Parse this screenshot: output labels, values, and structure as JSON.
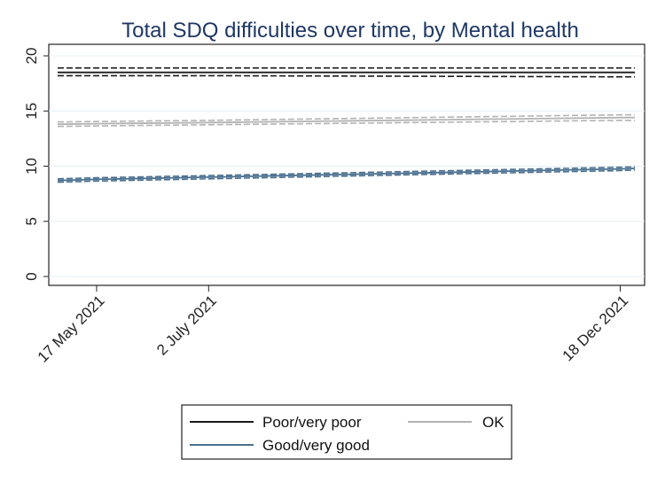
{
  "chart_data": {
    "type": "line",
    "title": "Total SDQ difficulties over time, by Mental health",
    "xlabel": "",
    "ylabel": "",
    "ylim": [
      0,
      20
    ],
    "yticks": [
      0,
      5,
      10,
      15,
      20
    ],
    "x_ticks": [
      "17 May 2021",
      "2 July 2021",
      "18 Dec 2021"
    ],
    "x": [
      "1 May 2021",
      "17 May 2021",
      "2 July 2021",
      "18 Dec 2021",
      "24 Dec 2021"
    ],
    "x_days": [
      0,
      16,
      62,
      231,
      237
    ],
    "grid": true,
    "legend_position": "bottom",
    "series": [
      {
        "name": "Poor/very poor",
        "color": "#1a1a1a",
        "values": [
          18.5,
          18.5,
          18.5,
          18.5,
          18.5
        ],
        "ci_lower": [
          18.2,
          18.2,
          18.2,
          18.1,
          18.1
        ],
        "ci_upper": [
          18.9,
          18.9,
          18.9,
          18.9,
          18.9
        ]
      },
      {
        "name": "OK",
        "color": "#b3b3b3",
        "values": [
          13.8,
          13.85,
          13.95,
          14.4,
          14.4
        ],
        "ci_lower": [
          13.6,
          13.65,
          13.75,
          14.15,
          14.15
        ],
        "ci_upper": [
          14.0,
          14.05,
          14.15,
          14.65,
          14.65
        ]
      },
      {
        "name": "Good/very good",
        "color": "#4a6f8f",
        "values": [
          8.7,
          8.8,
          9.0,
          9.75,
          9.8
        ],
        "ci_lower": [
          8.55,
          8.65,
          8.85,
          9.6,
          9.65
        ],
        "ci_upper": [
          8.85,
          8.95,
          9.15,
          9.9,
          9.95
        ]
      }
    ],
    "legend": [
      "Poor/very poor",
      "OK",
      "Good/very good"
    ]
  }
}
